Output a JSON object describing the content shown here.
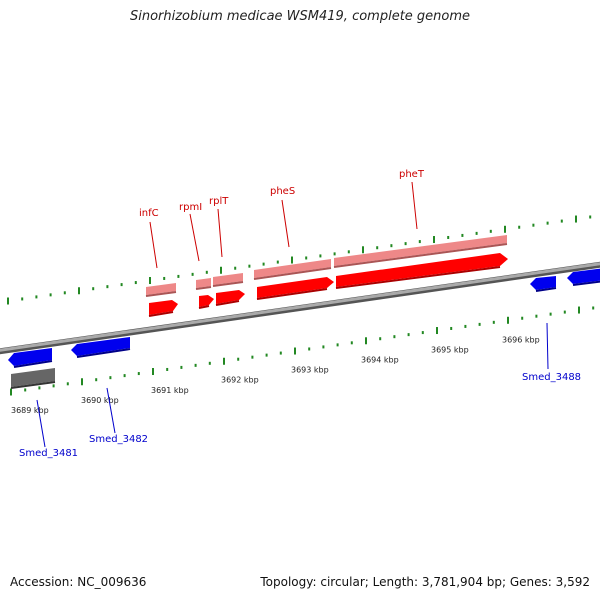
{
  "title": "Sinorhizobium medicae WSM419, complete genome",
  "footer": {
    "accession": "Accession: NC_009636",
    "summary": "Topology: circular; Length: 3,781,904 bp; Genes: 3,592"
  },
  "colors": {
    "forward_cds": "#ff0000",
    "forward_gene": "#ee8888",
    "reverse_cds": "#0000ee",
    "reverse_gene": "#666666",
    "axis": "#888888",
    "tick": "#228822",
    "label_forward": "#cc0000",
    "label_reverse": "#0000cc"
  },
  "tick_labels": [
    "3689 kbp",
    "3690 kbp",
    "3691 kbp",
    "3692 kbp",
    "3693 kbp",
    "3694 kbp",
    "3695 kbp",
    "3696 kbp"
  ],
  "forward_genes": [
    {
      "name": "infC"
    },
    {
      "name": "rpmI"
    },
    {
      "name": "rplT"
    },
    {
      "name": "pheS"
    },
    {
      "name": "pheT"
    }
  ],
  "reverse_genes": [
    {
      "name": "Smed_3481"
    },
    {
      "name": "Smed_3482"
    },
    {
      "name": "Smed_3488"
    }
  ]
}
